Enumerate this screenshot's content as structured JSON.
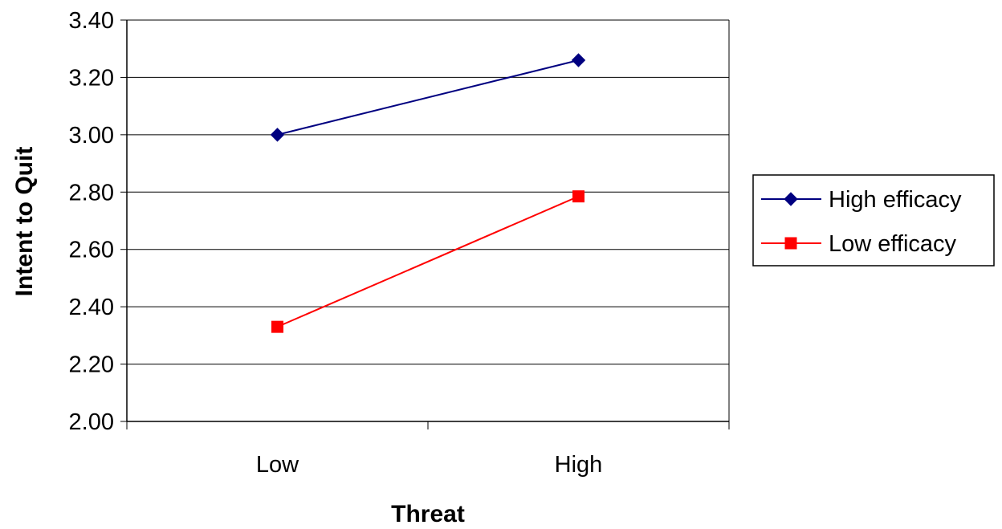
{
  "chart_data": {
    "type": "line",
    "title": "",
    "xlabel": "Threat",
    "ylabel": "Intent to Quit",
    "categories": [
      "Low",
      "High"
    ],
    "ylim": [
      2.0,
      3.4
    ],
    "yticks": [
      "2.00",
      "2.20",
      "2.40",
      "2.60",
      "2.80",
      "3.00",
      "3.20",
      "3.40"
    ],
    "grid": "horizontal",
    "legend_position": "right",
    "series": [
      {
        "name": "High efficacy",
        "values": [
          3.0,
          3.26
        ],
        "color": "#000080",
        "marker": "diamond"
      },
      {
        "name": "Low efficacy",
        "values": [
          2.33,
          2.785
        ],
        "color": "#ff0000",
        "marker": "square"
      }
    ]
  }
}
